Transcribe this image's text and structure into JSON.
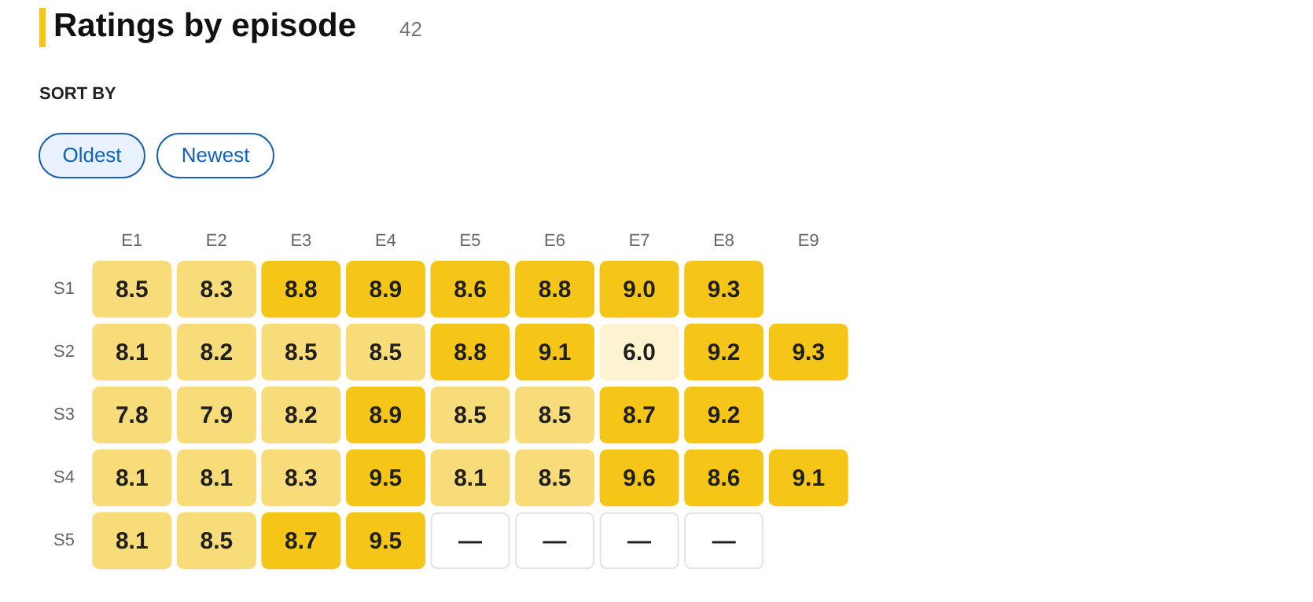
{
  "chart_data": {
    "type": "heatmap",
    "title": "Ratings by episode",
    "subtitle": "42",
    "annotations": [
      "SORT BY",
      "Oldest",
      "Newest"
    ],
    "categories": [
      "E1",
      "E2",
      "E3",
      "E4",
      "E5",
      "E6",
      "E7",
      "E8",
      "E9"
    ],
    "y_categories": [
      "S1",
      "S2",
      "S3",
      "S4",
      "S5"
    ],
    "cells": [
      [
        8.5,
        8.3,
        8.8,
        8.9,
        8.6,
        8.8,
        9.0,
        9.3,
        null
      ],
      [
        8.1,
        8.2,
        8.5,
        8.5,
        8.8,
        9.1,
        6.0,
        9.2,
        9.3
      ],
      [
        7.8,
        7.9,
        8.2,
        8.9,
        8.5,
        8.5,
        8.7,
        9.2,
        null
      ],
      [
        8.1,
        8.1,
        8.3,
        9.5,
        8.1,
        8.5,
        9.6,
        8.6,
        9.1
      ],
      [
        8.1,
        8.5,
        8.7,
        9.5,
        null,
        null,
        null,
        null,
        null
      ]
    ],
    "data_labels": true,
    "cell_labels": [
      [
        "8.5",
        "8.3",
        "8.8",
        "8.9",
        "8.6",
        "8.8",
        "9.0",
        "9.3",
        null
      ],
      [
        "8.1",
        "8.2",
        "8.5",
        "8.5",
        "8.8",
        "9.1",
        "6.0",
        "9.2",
        "9.3"
      ],
      [
        "7.8",
        "7.9",
        "8.2",
        "8.9",
        "8.5",
        "8.5",
        "8.7",
        "9.2",
        null
      ],
      [
        "8.1",
        "8.1",
        "8.3",
        "9.5",
        "8.1",
        "8.5",
        "9.6",
        "8.6",
        "9.1"
      ],
      [
        "8.1",
        "8.5",
        "8.7",
        "9.5",
        "—",
        "—",
        "—",
        "—",
        null
      ]
    ],
    "colors": [
      [
        "#f8dc7a",
        "#f8dc7a",
        "#f5c518",
        "#f5c518",
        "#f5c518",
        "#f5c518",
        "#f5c518",
        "#f5c518",
        null
      ],
      [
        "#f8dc7a",
        "#f8dc7a",
        "#f8dc7a",
        "#f8dc7a",
        "#f5c518",
        "#f5c518",
        "#fdf3d1",
        "#f5c518",
        "#f5c518"
      ],
      [
        "#f8dc7a",
        "#f8dc7a",
        "#f8dc7a",
        "#f5c518",
        "#f8dc7a",
        "#f8dc7a",
        "#f5c518",
        "#f5c518",
        null
      ],
      [
        "#f8dc7a",
        "#f8dc7a",
        "#f8dc7a",
        "#f5c518",
        "#f8dc7a",
        "#f8dc7a",
        "#f5c518",
        "#f5c518",
        "#f5c518"
      ],
      [
        "#f8dc7a",
        "#f8dc7a",
        "#f5c518",
        "#f5c518",
        "#ffffff",
        "#ffffff",
        "#ffffff",
        "#ffffff",
        null
      ]
    ]
  }
}
